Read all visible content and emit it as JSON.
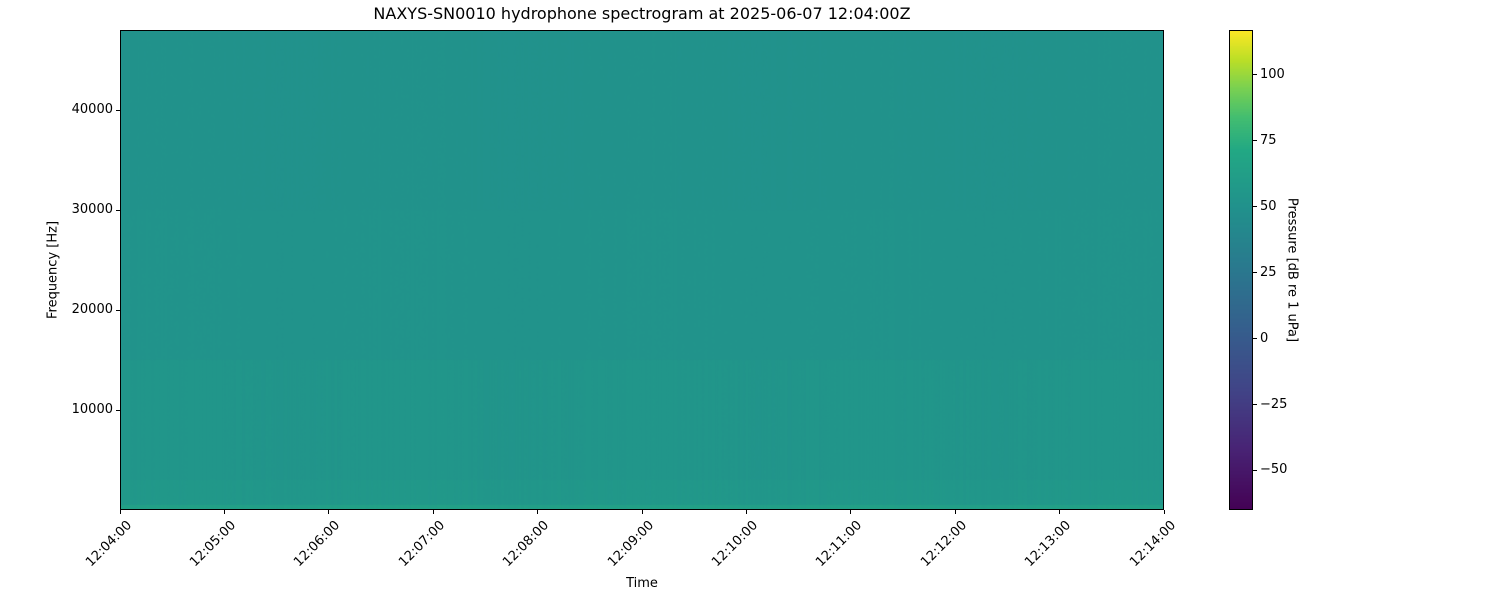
{
  "chart_data": {
    "type": "heatmap",
    "title": "NAXYS-SN0010 hydrophone spectrogram at 2025-06-07 12:04:00Z",
    "xlabel": "Time",
    "ylabel": "Frequency [Hz]",
    "colorbar_label": "Pressure [dB re 1 uPa]",
    "colormap": "viridis",
    "clim": [
      -65,
      117
    ],
    "xlim": [
      "12:04:00",
      "12:14:00"
    ],
    "ylim": [
      0,
      48000
    ],
    "x_ticks": [
      "12:04:00",
      "12:05:00",
      "12:06:00",
      "12:07:00",
      "12:08:00",
      "12:09:00",
      "12:10:00",
      "12:11:00",
      "12:12:00",
      "12:13:00",
      "12:14:00"
    ],
    "y_ticks": [
      10000,
      20000,
      30000,
      40000
    ],
    "y_tick_labels": [
      "10000",
      "20000",
      "30000",
      "40000"
    ],
    "colorbar_ticks": [
      100,
      75,
      50,
      25,
      0,
      -25,
      -50
    ],
    "colorbar_tick_labels": [
      "100",
      "75",
      "50",
      "25",
      "0",
      "−25",
      "−50"
    ],
    "band_levels_db": [
      {
        "freq_hz": [
          0,
          500
        ],
        "level": 64
      },
      {
        "freq_hz": [
          500,
          3000
        ],
        "level": 56
      },
      {
        "freq_hz": [
          3000,
          15000
        ],
        "level": 54
      },
      {
        "freq_hz": [
          15000,
          30000
        ],
        "level": 52
      },
      {
        "freq_hz": [
          30000,
          48000
        ],
        "level": 51
      }
    ],
    "grid": false
  }
}
